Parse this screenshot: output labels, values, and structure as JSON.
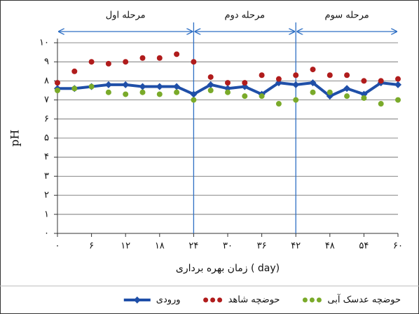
{
  "chart_data": {
    "type": "line",
    "ylabel": "pH",
    "xlabel": "زمان بهره برداری ( day)",
    "phases": [
      {
        "label": "مرحله اول",
        "start": 0,
        "end": 24
      },
      {
        "label": "مرحله دوم",
        "start": 24,
        "end": 42
      },
      {
        "label": "مرحله سوم",
        "start": 42,
        "end": 60
      }
    ],
    "x": [
      0,
      3,
      6,
      9,
      12,
      15,
      18,
      21,
      24,
      27,
      30,
      33,
      36,
      39,
      42,
      45,
      48,
      51,
      54,
      57,
      60
    ],
    "series": [
      {
        "name": "ورودی",
        "color": "#1f4fa8",
        "style": "line",
        "values": [
          7.6,
          7.6,
          7.7,
          7.8,
          7.8,
          7.7,
          7.7,
          7.7,
          7.3,
          7.8,
          7.6,
          7.7,
          7.3,
          7.9,
          7.8,
          7.9,
          7.2,
          7.6,
          7.3,
          7.9,
          7.8
        ]
      },
      {
        "name": "حوضچه شاهد",
        "color": "#b01c1c",
        "style": "markers",
        "values": [
          7.9,
          8.5,
          9.0,
          8.9,
          9.0,
          9.2,
          9.2,
          9.4,
          9.0,
          8.2,
          7.9,
          7.9,
          8.3,
          8.1,
          8.3,
          8.6,
          8.3,
          8.3,
          8.0,
          8.0,
          8.1
        ]
      },
      {
        "name": "حوضچه عدسک آبی",
        "color": "#7aaa2a",
        "style": "markers",
        "values": [
          7.5,
          7.6,
          7.7,
          7.4,
          7.3,
          7.4,
          7.3,
          7.4,
          7.0,
          7.5,
          7.4,
          7.2,
          7.2,
          6.8,
          7.0,
          7.4,
          7.4,
          7.2,
          7.1,
          6.8,
          7.0
        ]
      }
    ],
    "xlim": [
      0,
      60
    ],
    "xticks": [
      {
        "value": 0,
        "label": "۰"
      },
      {
        "value": 6,
        "label": "۶"
      },
      {
        "value": 12,
        "label": "۱۲"
      },
      {
        "value": 18,
        "label": "۱۸"
      },
      {
        "value": 24,
        "label": "۲۴"
      },
      {
        "value": 30,
        "label": "۳۰"
      },
      {
        "value": 36,
        "label": "۳۶"
      },
      {
        "value": 42,
        "label": "۴۲"
      },
      {
        "value": 48,
        "label": "۴۸"
      },
      {
        "value": 54,
        "label": "۵۴"
      },
      {
        "value": 60,
        "label": "۶۰"
      }
    ],
    "ylim": [
      0,
      10
    ],
    "yticks": [
      {
        "value": 0,
        "label": "۰"
      },
      {
        "value": 1,
        "label": "۱"
      },
      {
        "value": 2,
        "label": "۲"
      },
      {
        "value": 3,
        "label": "۳"
      },
      {
        "value": 4,
        "label": "۴"
      },
      {
        "value": 5,
        "label": "۵"
      },
      {
        "value": 6,
        "label": "۶"
      },
      {
        "value": 7,
        "label": "۷"
      },
      {
        "value": 8,
        "label": "۸"
      },
      {
        "value": 9,
        "label": "۹"
      },
      {
        "value": 10,
        "label": "۱۰"
      }
    ],
    "grid": true
  }
}
